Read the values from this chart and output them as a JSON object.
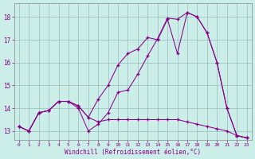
{
  "xlabel": "Windchill (Refroidissement éolien,°C)",
  "xlim": [
    -0.5,
    23.5
  ],
  "ylim": [
    12.6,
    18.6
  ],
  "xticks": [
    0,
    1,
    2,
    3,
    4,
    5,
    6,
    7,
    8,
    9,
    10,
    11,
    12,
    13,
    14,
    15,
    16,
    17,
    18,
    19,
    20,
    21,
    22,
    23
  ],
  "yticks": [
    13,
    14,
    15,
    16,
    17,
    18
  ],
  "background_color": "#cceee8",
  "line_color": "#880088",
  "grid_color": "#99bbbb",
  "line1_x": [
    0,
    1,
    2,
    3,
    4,
    5,
    6,
    7,
    8,
    9,
    10,
    11,
    12,
    13,
    14,
    15,
    16,
    17,
    18,
    19,
    20,
    21,
    22,
    23
  ],
  "line1_y": [
    13.2,
    13.0,
    13.8,
    13.9,
    14.3,
    14.3,
    14.1,
    13.6,
    13.4,
    13.5,
    13.5,
    13.5,
    13.5,
    13.5,
    13.5,
    13.5,
    13.5,
    13.4,
    13.3,
    13.2,
    13.1,
    13.0,
    12.8,
    12.7
  ],
  "line2_x": [
    0,
    1,
    2,
    3,
    4,
    5,
    6,
    7,
    8,
    9,
    10,
    11,
    12,
    13,
    14,
    15,
    16,
    17,
    18,
    19,
    20,
    21,
    22,
    23
  ],
  "line2_y": [
    13.2,
    13.0,
    13.8,
    13.9,
    14.3,
    14.3,
    14.1,
    13.6,
    14.4,
    15.0,
    15.9,
    16.4,
    16.6,
    17.1,
    17.0,
    17.9,
    16.4,
    18.2,
    18.0,
    17.3,
    16.0,
    14.0,
    12.8,
    12.7
  ],
  "line3_x": [
    0,
    1,
    2,
    3,
    4,
    5,
    6,
    7,
    8,
    9,
    10,
    11,
    12,
    13,
    14,
    15,
    16,
    17,
    18,
    19,
    20,
    21,
    22,
    23
  ],
  "line3_y": [
    13.2,
    13.0,
    13.8,
    13.9,
    14.3,
    14.3,
    14.0,
    13.0,
    13.3,
    13.8,
    14.7,
    14.8,
    15.5,
    16.3,
    17.05,
    17.95,
    17.9,
    18.2,
    18.0,
    17.3,
    16.0,
    14.0,
    12.8,
    12.7
  ]
}
